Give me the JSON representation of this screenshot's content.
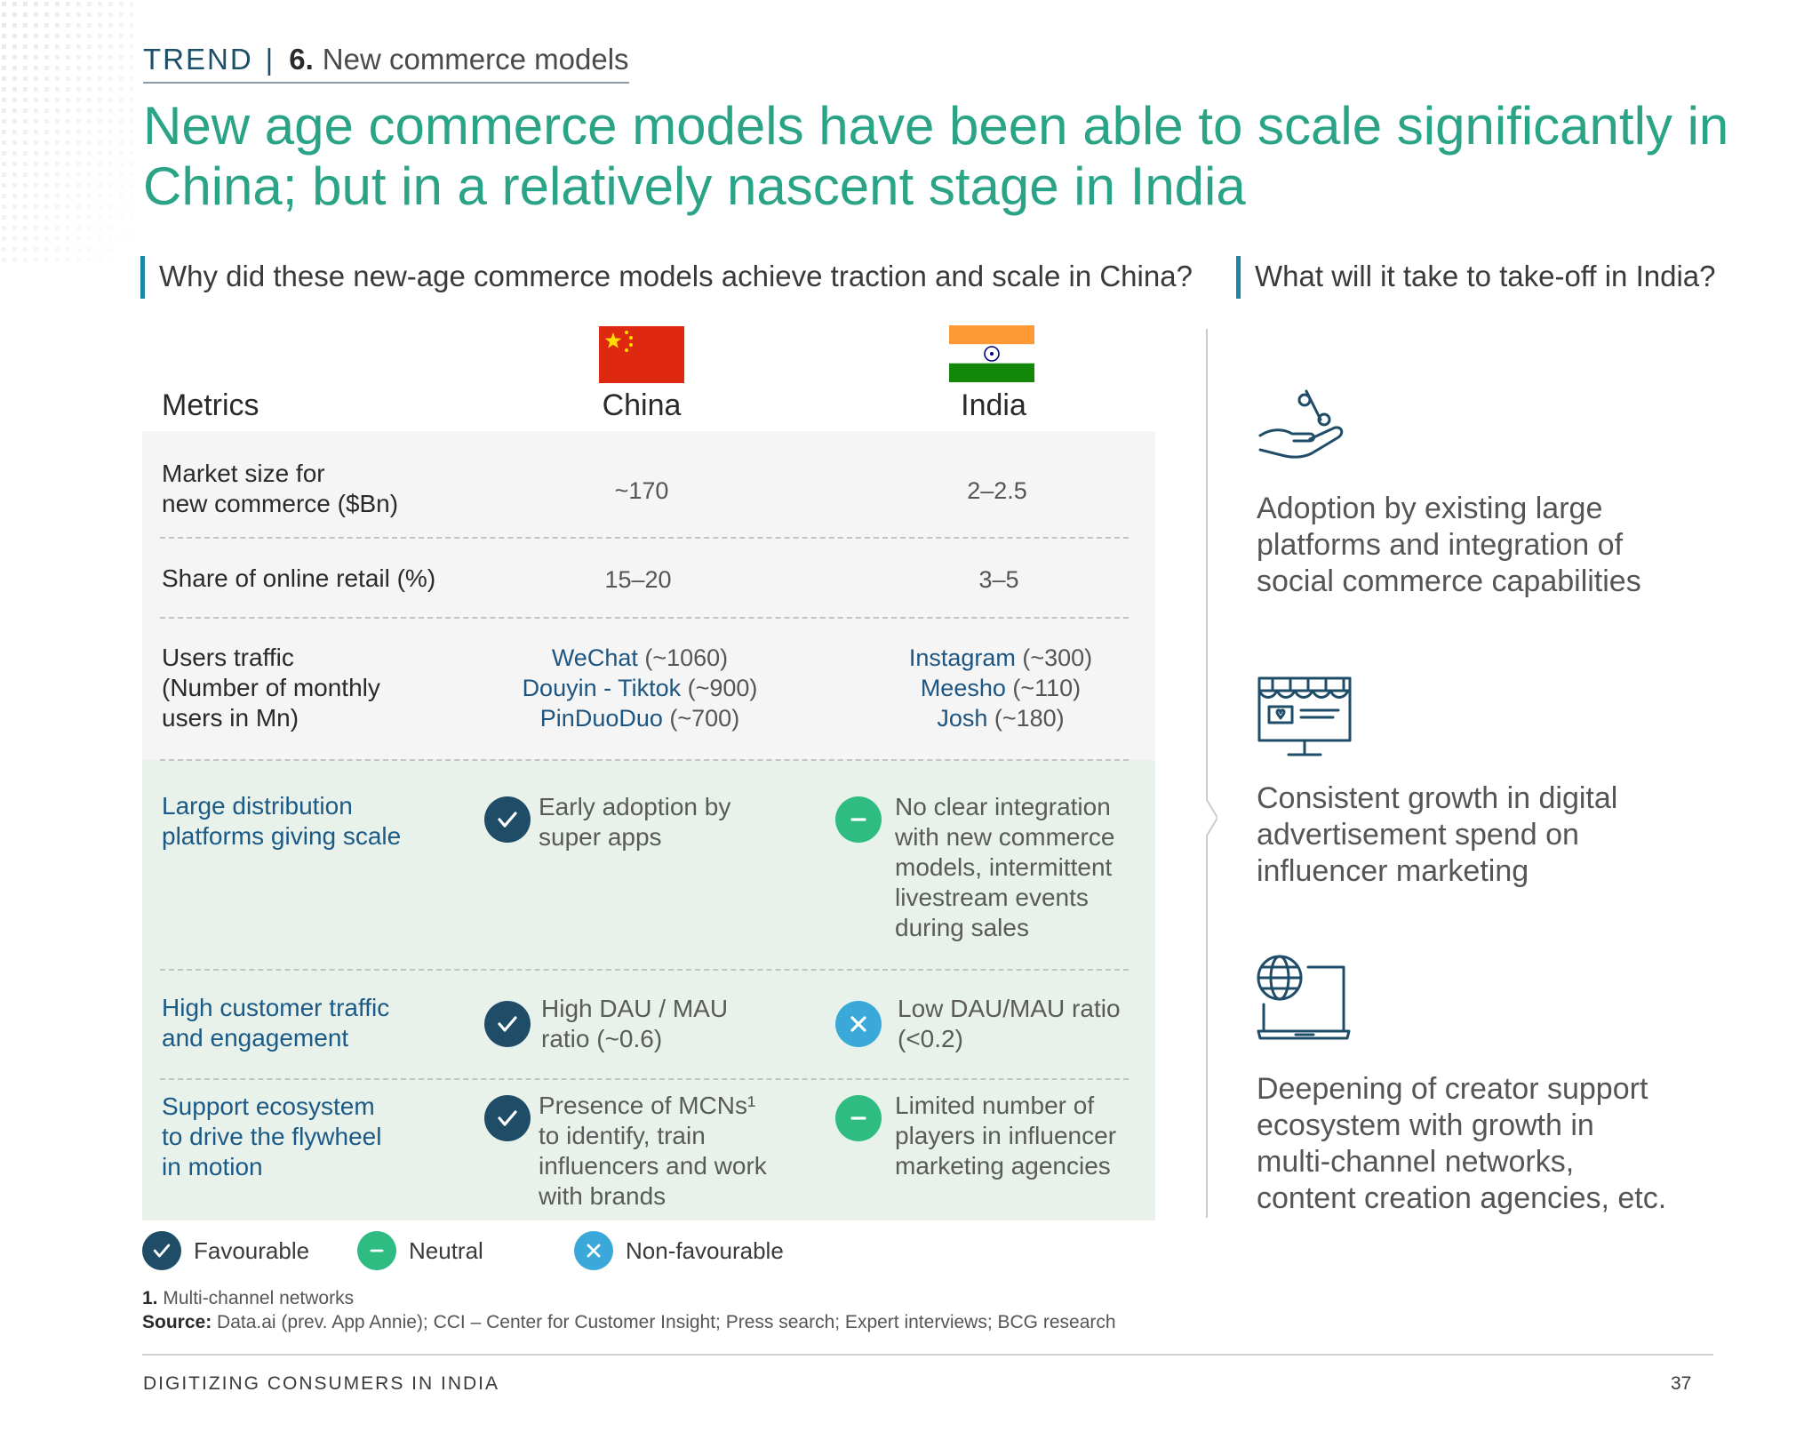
{
  "header": {
    "trend_word": "TREND",
    "separator": "|",
    "trend_number": "6.",
    "trend_label": "New commerce models"
  },
  "title": "New age commerce models have been able to scale significantly in China; but in a relatively nascent stage in India",
  "left_section": {
    "question": "Why did these new-age commerce models achieve traction and scale in China?",
    "columns": {
      "metrics": "Metrics",
      "china": "China",
      "india": "India"
    },
    "rows": {
      "market_size": {
        "label_line1": "Market size for",
        "label_line2": "new commerce ($Bn)",
        "china": "~170",
        "india": "2–2.5"
      },
      "share_online": {
        "label": "Share of online retail (%)",
        "china": "15–20",
        "india": "3–5"
      },
      "users_traffic": {
        "label_line1": "Users traffic",
        "label_line2": "(Number of monthly",
        "label_line3": "users in Mn)",
        "china": [
          {
            "brand": "WeChat",
            "value": " (~1060)"
          },
          {
            "brand": "Douyin - Tiktok",
            "value": " (~900)"
          },
          {
            "brand": "PinDuoDuo",
            "value": " (~700)"
          }
        ],
        "india": [
          {
            "brand": "Instagram",
            "value": " (~300)"
          },
          {
            "brand": "Meesho",
            "value": " (~110)"
          },
          {
            "brand": "Josh",
            "value": " (~180)"
          }
        ]
      },
      "distribution": {
        "label_line1": "Large distribution",
        "label_line2": "platforms giving scale",
        "china_status": "favourable",
        "china_line1": "Early adoption by",
        "china_line2": "super apps",
        "india_status": "neutral",
        "india_line1": "No clear integration",
        "india_line2": "with new commerce",
        "india_line3": "models, intermittent",
        "india_line4": "livestream events",
        "india_line5": "during sales"
      },
      "traffic": {
        "label_line1": "High customer traffic",
        "label_line2": "and engagement",
        "china_status": "favourable",
        "china_line1": "High DAU / MAU",
        "china_line2": "ratio (~0.6)",
        "india_status": "non-favourable",
        "india_line1": "Low DAU/MAU ratio",
        "india_line2": "(<0.2)"
      },
      "ecosystem": {
        "label_line1": "Support ecosystem",
        "label_line2": "to drive the flywheel",
        "label_line3": "in motion",
        "china_status": "favourable",
        "china_line1": "Presence of MCNs¹",
        "china_line2": "to identify, train",
        "china_line3": "influencers and work",
        "china_line4": "with brands",
        "india_status": "neutral",
        "india_line1": "Limited number of",
        "india_line2": "players in influencer",
        "india_line3": "marketing agencies"
      }
    },
    "legend": {
      "favourable": "Favourable",
      "neutral": "Neutral",
      "non_favourable": "Non-favourable"
    }
  },
  "right_section": {
    "question": "What will it take to take-off in India?",
    "items": [
      {
        "icon": "hand-percent-icon",
        "line1": "Adoption by existing large",
        "line2": "platforms and integration of",
        "line3": "social commerce capabilities"
      },
      {
        "icon": "online-store-icon",
        "line1": "Consistent growth in digital",
        "line2": "advertisement spend on",
        "line3": "influencer marketing"
      },
      {
        "icon": "globe-laptop-icon",
        "line1": "Deepening of creator support",
        "line2": "ecosystem with growth in",
        "line3": "multi-channel networks,",
        "line4": "content creation agencies, etc."
      }
    ]
  },
  "footnotes": {
    "note_num": "1.",
    "note_text": " Multi-channel networks",
    "source_label": "Source:",
    "source_text": " Data.ai (prev. App Annie); CCI – Center for Customer Insight; Press search; Expert interviews; BCG research"
  },
  "footer": {
    "left": "DIGITIZING CONSUMERS IN INDIA",
    "page": "37"
  },
  "colors": {
    "title": "#2aa387",
    "favourable": "#1f4d68",
    "neutral": "#2ebc82",
    "non_favourable": "#3aa9d9",
    "accent_bar": "#1b86a6",
    "brand_text": "#1e5580"
  }
}
